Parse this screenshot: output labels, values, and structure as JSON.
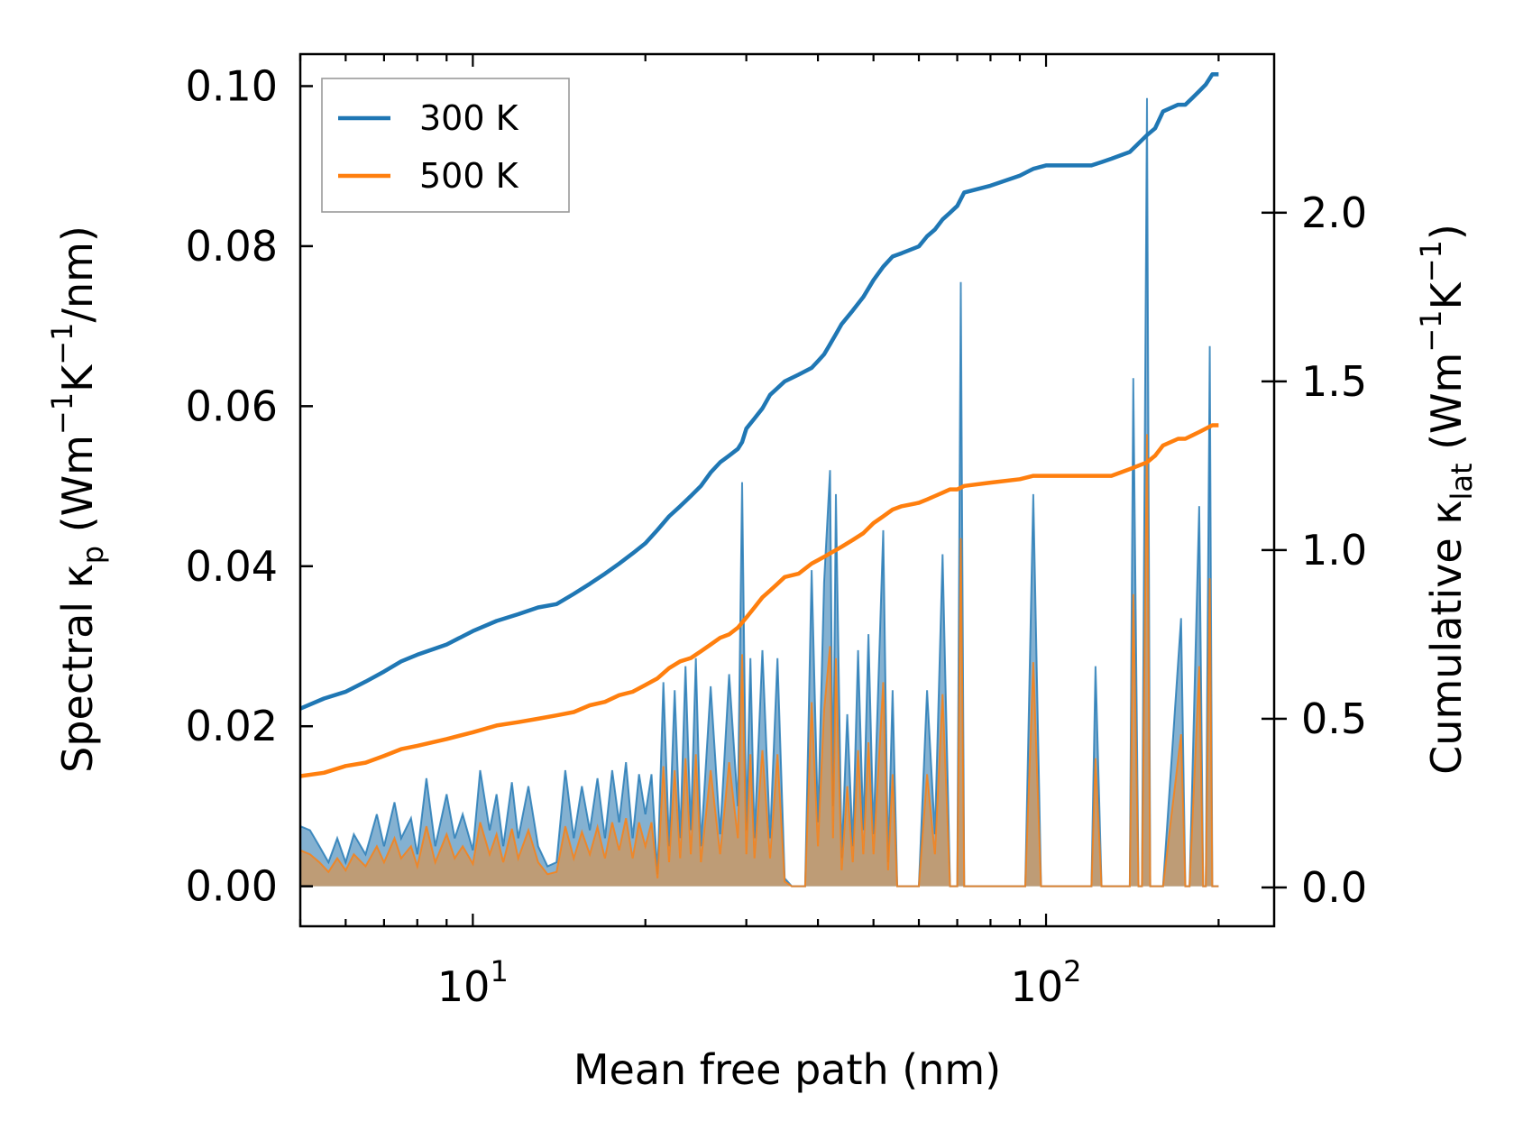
{
  "chart_data": {
    "type": "line",
    "x_scale": "log",
    "xlim": [
      5,
      250
    ],
    "xlabel": "Mean free path (nm)",
    "x_ticks": [
      {
        "value": 10,
        "base": "10",
        "exp": "1"
      },
      {
        "value": 100,
        "base": "10",
        "exp": "2"
      }
    ],
    "y_left": {
      "label_prefix": "Spectral κ",
      "label_sub": "p",
      "label_unit_open": " (Wm",
      "label_sup1": "−1",
      "label_mid": "K",
      "label_sup2": "−1",
      "label_close": "/nm)",
      "ylim": [
        -0.005,
        0.104
      ],
      "ticks": [
        {
          "value": 0.0,
          "label": "0.00"
        },
        {
          "value": 0.02,
          "label": "0.02"
        },
        {
          "value": 0.04,
          "label": "0.04"
        },
        {
          "value": 0.06,
          "label": "0.06"
        },
        {
          "value": 0.08,
          "label": "0.08"
        },
        {
          "value": 0.1,
          "label": "0.10"
        }
      ]
    },
    "y_right": {
      "label_prefix": "Cumulative κ",
      "label_sub": "lat",
      "label_unit_open": " (Wm",
      "label_sup1": "−1",
      "label_mid": "K",
      "label_sup2": "−1",
      "label_close": ")",
      "ylim": [
        -0.115,
        2.47
      ],
      "ticks": [
        {
          "value": 0.0,
          "label": "0.0"
        },
        {
          "value": 0.5,
          "label": "0.5"
        },
        {
          "value": 1.0,
          "label": "1.0"
        },
        {
          "value": 1.5,
          "label": "1.5"
        },
        {
          "value": 2.0,
          "label": "2.0"
        }
      ]
    },
    "legend": {
      "position": "top-left",
      "entries": [
        {
          "label": "300 K",
          "color": "#1f77b4"
        },
        {
          "label": "500 K",
          "color": "#ff7f0e"
        }
      ]
    },
    "colors": {
      "c300": "#1f77b4",
      "c500": "#ff7f0e",
      "spectral_fill_300": "#6fa3c9",
      "spectral_fill_500": "#c49a6c"
    },
    "cumulative": [
      {
        "name": "300 K",
        "x": [
          5.0,
          5.5,
          6.0,
          6.5,
          7.0,
          7.5,
          8.0,
          9.0,
          10.0,
          11.0,
          12.0,
          13.0,
          14.0,
          15.0,
          16.0,
          17.0,
          18.0,
          19.0,
          20.0,
          21.0,
          22.0,
          23.0,
          24.0,
          25.0,
          26.0,
          27.0,
          28.0,
          29.0,
          29.5,
          30.0,
          31.0,
          32.0,
          33.0,
          34.0,
          35.0,
          37.0,
          39.0,
          40.0,
          41.0,
          42.0,
          43.0,
          44.0,
          46.0,
          48.0,
          50.0,
          52.0,
          54.0,
          56.0,
          60.0,
          62.0,
          64.0,
          66.0,
          68.0,
          70.0,
          72.0,
          80.0,
          90.0,
          95.0,
          100.0,
          120.0,
          125.0,
          130.0,
          140.0,
          150.0,
          155.0,
          160.0,
          170.0,
          175.0,
          180.0,
          185.0,
          190.0,
          195.0,
          200.0
        ],
        "y": [
          0.53,
          0.56,
          0.58,
          0.61,
          0.64,
          0.67,
          0.69,
          0.72,
          0.76,
          0.79,
          0.81,
          0.83,
          0.84,
          0.87,
          0.9,
          0.93,
          0.96,
          0.99,
          1.02,
          1.06,
          1.1,
          1.13,
          1.16,
          1.19,
          1.23,
          1.26,
          1.28,
          1.3,
          1.32,
          1.36,
          1.39,
          1.42,
          1.46,
          1.48,
          1.5,
          1.52,
          1.54,
          1.56,
          1.58,
          1.61,
          1.64,
          1.67,
          1.71,
          1.75,
          1.8,
          1.84,
          1.87,
          1.88,
          1.9,
          1.93,
          1.95,
          1.98,
          2.0,
          2.02,
          2.06,
          2.08,
          2.11,
          2.13,
          2.14,
          2.14,
          2.15,
          2.16,
          2.18,
          2.23,
          2.25,
          2.3,
          2.32,
          2.32,
          2.34,
          2.36,
          2.38,
          2.41,
          2.41
        ]
      },
      {
        "name": "500 K",
        "x": [
          5.0,
          5.5,
          6.0,
          6.5,
          7.0,
          7.5,
          8.0,
          9.0,
          10.0,
          11.0,
          12.0,
          13.0,
          14.0,
          15.0,
          16.0,
          17.0,
          18.0,
          19.0,
          20.0,
          21.0,
          22.0,
          23.0,
          24.0,
          25.0,
          26.0,
          27.0,
          28.0,
          29.0,
          30.0,
          31.0,
          32.0,
          33.0,
          34.0,
          35.0,
          37.0,
          39.0,
          40.0,
          41.0,
          42.0,
          43.0,
          44.0,
          46.0,
          48.0,
          50.0,
          52.0,
          54.0,
          56.0,
          60.0,
          62.0,
          64.0,
          66.0,
          68.0,
          70.0,
          72.0,
          80.0,
          90.0,
          95.0,
          100.0,
          120.0,
          125.0,
          130.0,
          140.0,
          150.0,
          155.0,
          160.0,
          170.0,
          175.0,
          180.0,
          185.0,
          190.0,
          195.0,
          200.0
        ],
        "y": [
          0.33,
          0.34,
          0.36,
          0.37,
          0.39,
          0.41,
          0.42,
          0.44,
          0.46,
          0.48,
          0.49,
          0.5,
          0.51,
          0.52,
          0.54,
          0.55,
          0.57,
          0.58,
          0.6,
          0.62,
          0.65,
          0.67,
          0.68,
          0.7,
          0.72,
          0.74,
          0.75,
          0.77,
          0.8,
          0.83,
          0.86,
          0.88,
          0.9,
          0.92,
          0.93,
          0.96,
          0.97,
          0.98,
          0.99,
          1.0,
          1.01,
          1.03,
          1.05,
          1.08,
          1.1,
          1.12,
          1.13,
          1.14,
          1.15,
          1.16,
          1.17,
          1.18,
          1.18,
          1.19,
          1.2,
          1.21,
          1.22,
          1.22,
          1.22,
          1.22,
          1.22,
          1.24,
          1.26,
          1.28,
          1.31,
          1.33,
          1.33,
          1.34,
          1.35,
          1.36,
          1.37,
          1.37
        ]
      }
    ],
    "spectral": [
      {
        "name": "300 K",
        "x": [
          5.0,
          5.2,
          5.4,
          5.6,
          5.8,
          6.0,
          6.2,
          6.5,
          6.8,
          7.0,
          7.3,
          7.5,
          7.8,
          8.0,
          8.3,
          8.6,
          9.0,
          9.3,
          9.6,
          10.0,
          10.3,
          10.7,
          11.0,
          11.3,
          11.7,
          12.0,
          12.5,
          13.0,
          13.5,
          14.0,
          14.5,
          15.0,
          15.5,
          16.0,
          16.5,
          17.0,
          17.5,
          18.0,
          18.5,
          19.0,
          19.5,
          20.0,
          20.5,
          21.0,
          21.5,
          22.0,
          22.5,
          23.0,
          23.5,
          24.0,
          24.5,
          25.0,
          26.0,
          27.0,
          28.0,
          29.0,
          29.5,
          30.0,
          30.5,
          31.0,
          32.0,
          33.0,
          34.0,
          35.0,
          36.0,
          37.0,
          38.0,
          39.0,
          40.0,
          41.0,
          42.0,
          42.5,
          43.0,
          44.0,
          45.0,
          46.0,
          47.0,
          48.0,
          49.0,
          50.0,
          52.0,
          53.0,
          54.0,
          55.0,
          57.0,
          60.0,
          62.0,
          64.0,
          66.0,
          68.0,
          70.0,
          71.0,
          72.0,
          90.0,
          92.0,
          95.0,
          98.0,
          120.0,
          122.0,
          125.0,
          127.0,
          140.0,
          142.0,
          145.0,
          147.0,
          150.0,
          152.0,
          155.0,
          158.0,
          160.0,
          172.0,
          175.0,
          178.0,
          185.0,
          188.0,
          190.0,
          193.0,
          195.0,
          198.0,
          200.0
        ],
        "y": [
          0.0075,
          0.007,
          0.005,
          0.003,
          0.006,
          0.003,
          0.0065,
          0.004,
          0.009,
          0.005,
          0.0105,
          0.006,
          0.0085,
          0.004,
          0.0135,
          0.005,
          0.0115,
          0.006,
          0.009,
          0.0045,
          0.0145,
          0.007,
          0.0115,
          0.005,
          0.013,
          0.006,
          0.0125,
          0.005,
          0.0025,
          0.003,
          0.0145,
          0.006,
          0.0125,
          0.007,
          0.0135,
          0.006,
          0.0145,
          0.008,
          0.0155,
          0.006,
          0.014,
          0.009,
          0.014,
          0.0015,
          0.0255,
          0.005,
          0.0245,
          0.006,
          0.0275,
          0.007,
          0.0285,
          0.005,
          0.025,
          0.0065,
          0.0265,
          0.01,
          0.0505,
          0.007,
          0.0285,
          0.006,
          0.0295,
          0.006,
          0.0285,
          0.001,
          0.0,
          0.0,
          0.0,
          0.0395,
          0.008,
          0.038,
          0.052,
          0.01,
          0.049,
          0.0035,
          0.0215,
          0.005,
          0.0295,
          0.007,
          0.0315,
          0.0065,
          0.0445,
          0.003,
          0.0245,
          0.0,
          0.0,
          0.0,
          0.0245,
          0.0065,
          0.0415,
          0.0,
          0.0,
          0.0755,
          0.0,
          0.0,
          0.0,
          0.049,
          0.0,
          0.0,
          0.0275,
          0.0,
          0.0,
          0.0,
          0.0635,
          0.0,
          0.0,
          0.0985,
          0.0,
          0.0,
          0.0,
          0.0,
          0.0335,
          0.0,
          0.0,
          0.0475,
          0.0,
          0.0,
          0.0675,
          0.0,
          0.0,
          0.0
        ]
      },
      {
        "name": "500 K",
        "x": [
          5.0,
          5.2,
          5.4,
          5.6,
          5.8,
          6.0,
          6.2,
          6.5,
          6.8,
          7.0,
          7.3,
          7.5,
          7.8,
          8.0,
          8.3,
          8.6,
          9.0,
          9.3,
          9.6,
          10.0,
          10.3,
          10.7,
          11.0,
          11.3,
          11.7,
          12.0,
          12.5,
          13.0,
          13.5,
          14.0,
          14.5,
          15.0,
          15.5,
          16.0,
          16.5,
          17.0,
          17.5,
          18.0,
          18.5,
          19.0,
          19.5,
          20.0,
          20.5,
          21.0,
          21.5,
          22.0,
          22.5,
          23.0,
          23.5,
          24.0,
          24.5,
          25.0,
          26.0,
          27.0,
          28.0,
          29.0,
          29.5,
          30.0,
          30.5,
          31.0,
          32.0,
          33.0,
          34.0,
          35.0,
          36.0,
          37.0,
          38.0,
          39.0,
          40.0,
          41.0,
          42.0,
          42.5,
          43.0,
          44.0,
          45.0,
          46.0,
          47.0,
          48.0,
          49.0,
          50.0,
          52.0,
          53.0,
          54.0,
          55.0,
          57.0,
          60.0,
          62.0,
          64.0,
          66.0,
          68.0,
          70.0,
          71.0,
          72.0,
          90.0,
          92.0,
          95.0,
          98.0,
          120.0,
          122.0,
          125.0,
          127.0,
          140.0,
          142.0,
          145.0,
          147.0,
          150.0,
          152.0,
          155.0,
          158.0,
          160.0,
          172.0,
          175.0,
          178.0,
          185.0,
          188.0,
          190.0,
          193.0,
          195.0,
          198.0,
          200.0
        ],
        "y": [
          0.0045,
          0.004,
          0.003,
          0.0018,
          0.0035,
          0.002,
          0.004,
          0.0025,
          0.005,
          0.003,
          0.006,
          0.0035,
          0.005,
          0.0025,
          0.0075,
          0.003,
          0.0065,
          0.0035,
          0.005,
          0.0028,
          0.008,
          0.004,
          0.0065,
          0.003,
          0.0072,
          0.0035,
          0.007,
          0.003,
          0.0015,
          0.0018,
          0.0075,
          0.0035,
          0.0068,
          0.004,
          0.0074,
          0.0035,
          0.008,
          0.0045,
          0.0085,
          0.0035,
          0.008,
          0.005,
          0.008,
          0.001,
          0.015,
          0.003,
          0.0145,
          0.0035,
          0.016,
          0.004,
          0.0165,
          0.003,
          0.0145,
          0.004,
          0.0155,
          0.006,
          0.029,
          0.004,
          0.0165,
          0.0035,
          0.017,
          0.0035,
          0.0165,
          0.0006,
          0.0,
          0.0,
          0.0,
          0.023,
          0.005,
          0.022,
          0.03,
          0.006,
          0.0285,
          0.002,
          0.0125,
          0.003,
          0.017,
          0.004,
          0.018,
          0.004,
          0.0255,
          0.002,
          0.014,
          0.0,
          0.0,
          0.0,
          0.014,
          0.004,
          0.024,
          0.0,
          0.0,
          0.0435,
          0.0,
          0.0,
          0.0,
          0.028,
          0.0,
          0.0,
          0.016,
          0.0,
          0.0,
          0.0,
          0.0365,
          0.0,
          0.0,
          0.0565,
          0.0,
          0.0,
          0.0,
          0.0,
          0.019,
          0.0,
          0.0,
          0.0275,
          0.0,
          0.0,
          0.0385,
          0.0,
          0.0,
          0.0
        ]
      }
    ]
  }
}
